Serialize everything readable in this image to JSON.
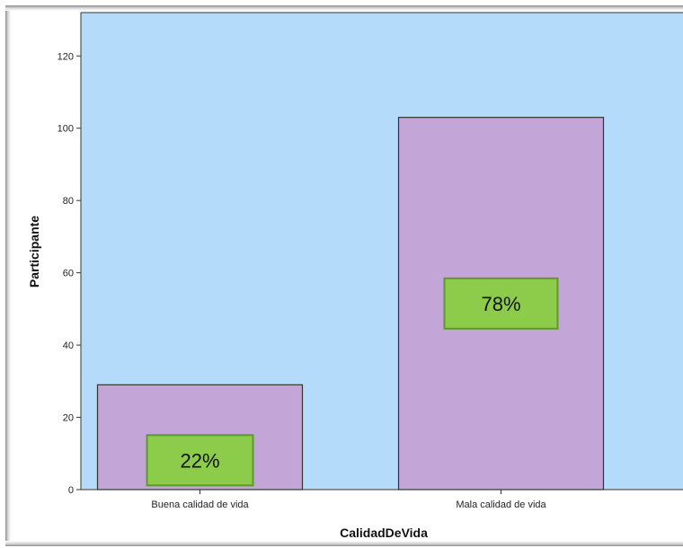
{
  "chart_data": {
    "type": "bar",
    "categories": [
      "Buena calidad  de vida",
      "Mala calidad de vida"
    ],
    "values": [
      29,
      103
    ],
    "xlabel": "CalidadDeVida",
    "ylabel": "Participante",
    "ylim": [
      0,
      132
    ],
    "yticks": [
      0,
      20,
      40,
      60,
      80,
      100,
      120
    ],
    "grid": false,
    "data_labels": [
      "22%",
      "78%"
    ],
    "colors": {
      "plot_background": "#b4dcfa",
      "bar_fill": "#c4a5d8",
      "bar_stroke": "#333333",
      "label_box_fill": "#8ccc4a",
      "label_box_stroke": "#5a9a2e"
    }
  }
}
